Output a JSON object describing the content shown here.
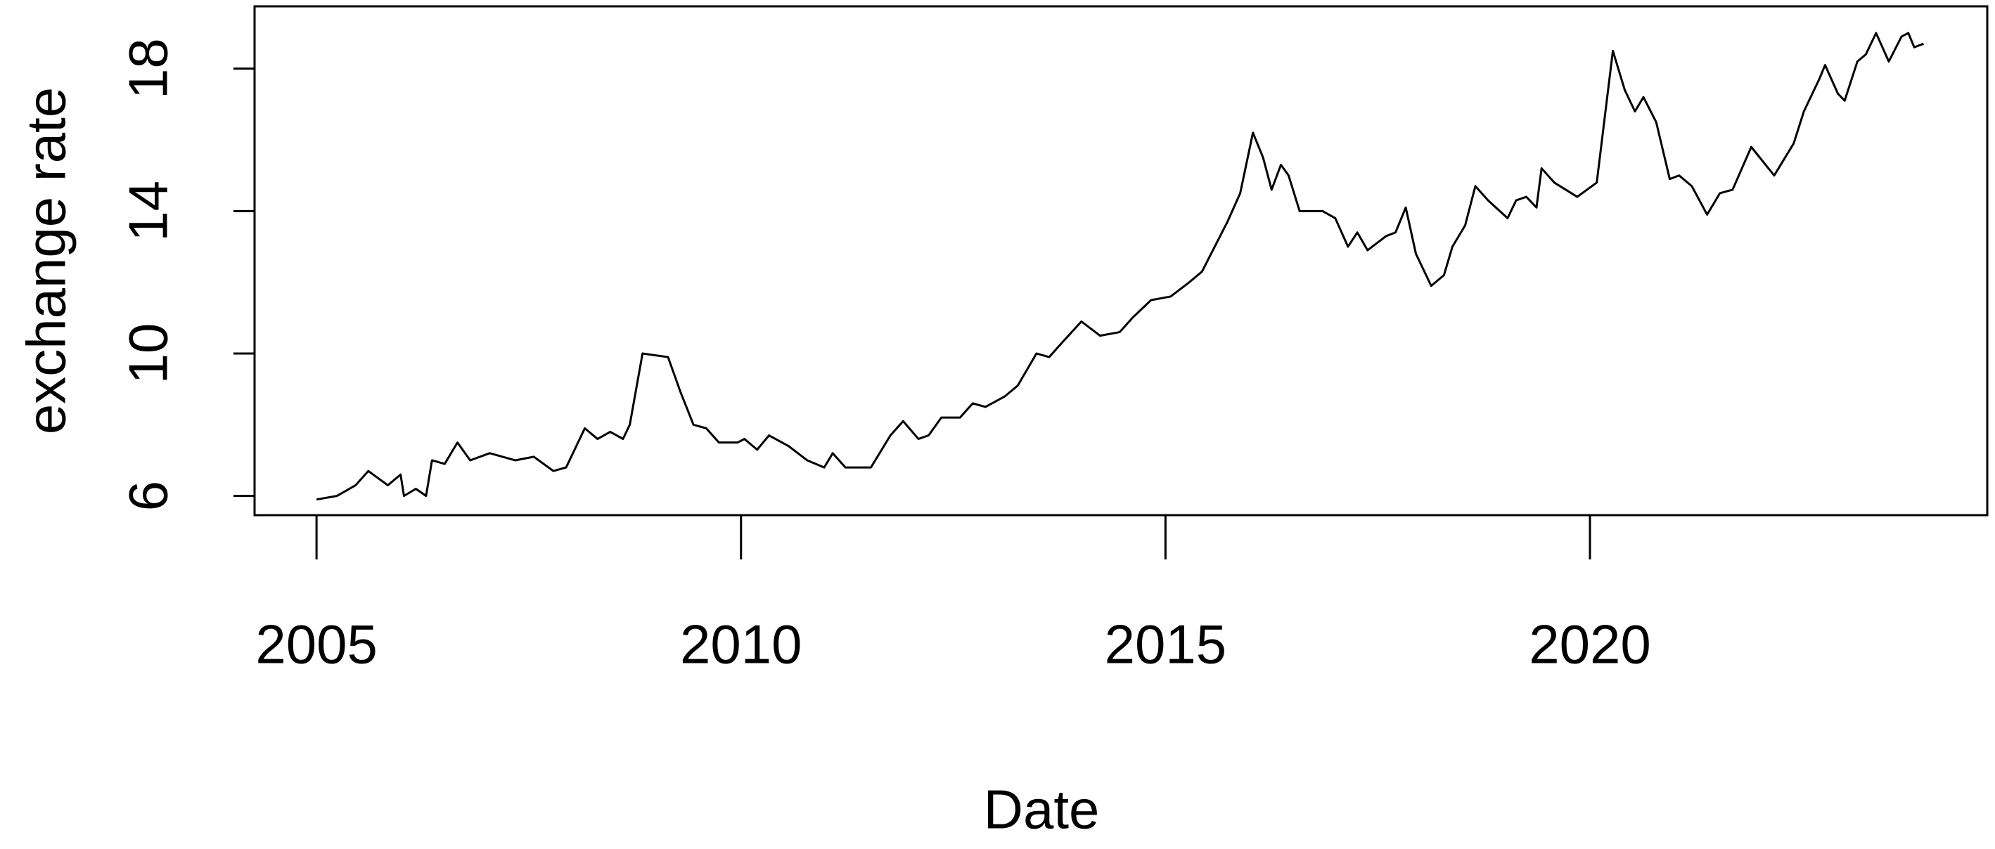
{
  "chart_data": {
    "type": "line",
    "x_label": "Date",
    "y_label": "exchange rate",
    "x": [
      2005.0,
      2005.24,
      2005.46,
      2005.61,
      2005.84,
      2005.99,
      2006.03,
      2006.17,
      2006.29,
      2006.36,
      2006.51,
      2006.66,
      2006.81,
      2007.04,
      2007.34,
      2007.56,
      2007.79,
      2007.94,
      2008.16,
      2008.31,
      2008.46,
      2008.61,
      2008.69,
      2008.84,
      2009.14,
      2009.29,
      2009.44,
      2009.59,
      2009.74,
      2009.96,
      2010.04,
      2010.19,
      2010.33,
      2010.56,
      2010.78,
      2010.98,
      2011.08,
      2011.23,
      2011.53,
      2011.76,
      2011.91,
      2012.09,
      2012.21,
      2012.36,
      2012.58,
      2012.73,
      2012.88,
      2013.11,
      2013.26,
      2013.48,
      2013.63,
      2013.78,
      2014.01,
      2014.23,
      2014.46,
      2014.61,
      2014.83,
      2015.06,
      2015.28,
      2015.43,
      2015.58,
      2015.73,
      2015.88,
      2016.03,
      2016.15,
      2016.25,
      2016.36,
      2016.45,
      2016.58,
      2016.85,
      2017.0,
      2017.15,
      2017.26,
      2017.38,
      2017.6,
      2017.71,
      2017.83,
      2017.95,
      2018.13,
      2018.28,
      2018.38,
      2018.53,
      2018.65,
      2018.8,
      2019.03,
      2019.13,
      2019.25,
      2019.37,
      2019.43,
      2019.58,
      2019.85,
      2020.08,
      2020.27,
      2020.41,
      2020.53,
      2020.63,
      2020.78,
      2020.94,
      2021.05,
      2021.2,
      2021.38,
      2021.53,
      2021.68,
      2021.9,
      2022.17,
      2022.4,
      2022.52,
      2022.7,
      2022.77,
      2022.92,
      2023.0,
      2023.15,
      2023.25,
      2023.37,
      2023.52,
      2023.67,
      2023.75,
      2023.82,
      2023.93
    ],
    "series": [
      {
        "color": "#000000",
        "values": [
          5.9,
          6.0,
          6.3,
          6.7,
          6.3,
          6.6,
          6.0,
          6.2,
          6.0,
          7.0,
          6.9,
          7.5,
          7.0,
          7.2,
          7.0,
          7.1,
          6.7,
          6.8,
          7.9,
          7.6,
          7.8,
          7.6,
          8.0,
          10.0,
          9.9,
          8.9,
          8.0,
          7.9,
          7.5,
          7.5,
          7.6,
          7.3,
          7.7,
          7.4,
          7.0,
          6.8,
          7.2,
          6.8,
          6.8,
          7.7,
          8.1,
          7.6,
          7.7,
          8.2,
          8.2,
          8.6,
          8.5,
          8.8,
          9.1,
          10.0,
          9.9,
          10.3,
          10.9,
          10.5,
          10.6,
          11.0,
          11.5,
          11.6,
          12.0,
          12.3,
          13.0,
          13.7,
          14.5,
          16.2,
          15.5,
          14.6,
          15.3,
          15.0,
          14.0,
          14.0,
          13.8,
          13.0,
          13.4,
          12.9,
          13.3,
          13.4,
          14.1,
          12.8,
          11.9,
          12.2,
          13.0,
          13.6,
          14.7,
          14.3,
          13.8,
          14.3,
          14.4,
          14.1,
          15.2,
          14.8,
          14.4,
          14.8,
          18.5,
          17.4,
          16.8,
          17.2,
          16.5,
          14.9,
          15.0,
          14.7,
          13.9,
          14.5,
          14.6,
          15.8,
          15.0,
          15.9,
          16.8,
          17.7,
          18.1,
          17.3,
          17.1,
          18.2,
          18.4,
          19.0,
          18.2,
          18.9,
          19.0,
          18.6,
          18.7
        ]
      }
    ],
    "xlim": [
      2004.27,
      2024.68
    ],
    "xticks": [
      2005,
      2010,
      2015,
      2020
    ],
    "ylim": [
      5.46,
      19.75
    ],
    "yticks": [
      6,
      10,
      14,
      18
    ]
  }
}
